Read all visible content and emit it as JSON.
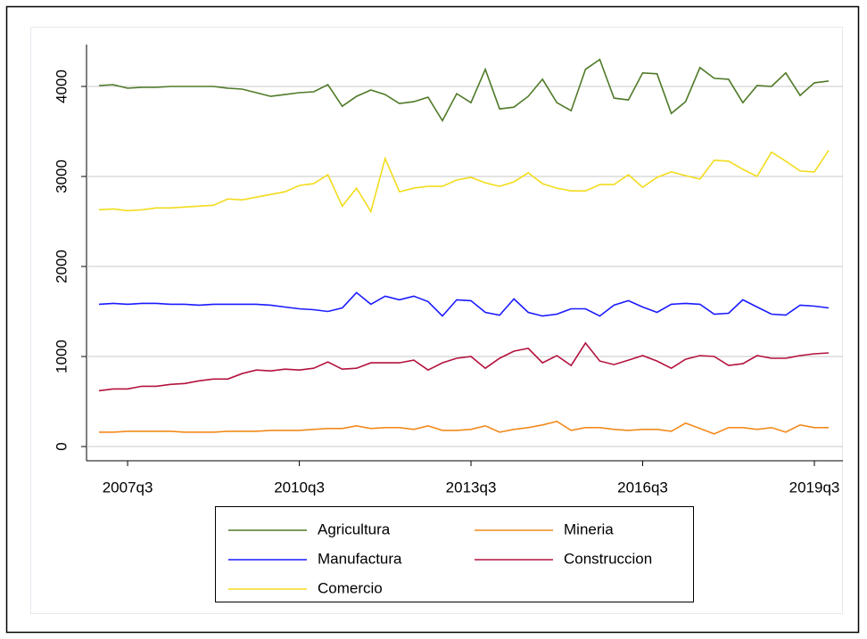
{
  "chart_data": {
    "type": "line",
    "categories": [
      null,
      null,
      "2007q3",
      null,
      null,
      null,
      null,
      null,
      null,
      null,
      null,
      null,
      null,
      null,
      "2010q3",
      null,
      null,
      null,
      null,
      null,
      null,
      null,
      null,
      null,
      null,
      null,
      "2013q3",
      null,
      null,
      null,
      null,
      null,
      null,
      null,
      null,
      null,
      null,
      null,
      "2016q3",
      null,
      null,
      null,
      null,
      null,
      null,
      null,
      null,
      null,
      null,
      null,
      "2019q3",
      null
    ],
    "ylim": [
      -158,
      4465
    ],
    "yticks": [
      0,
      1000,
      2000,
      3000,
      4000
    ],
    "grid": true,
    "series": [
      {
        "name": "Agricultura",
        "color": "#4f7a28",
        "values": [
          4010,
          4020,
          3980,
          3990,
          3990,
          4000,
          4000,
          4000,
          4000,
          3980,
          3970,
          3930,
          3890,
          3910,
          3930,
          3940,
          4020,
          3780,
          3890,
          3960,
          3910,
          3810,
          3830,
          3880,
          3620,
          3920,
          3820,
          4190,
          3750,
          3770,
          3890,
          4080,
          3820,
          3730,
          4190,
          4300,
          3870,
          3850,
          4150,
          4140,
          3700,
          3830,
          4210,
          4090,
          4080,
          3820,
          4010,
          4000,
          4150,
          3900,
          4040,
          4060
        ]
      },
      {
        "name": "Mineria",
        "color": "#f28a1c",
        "values": [
          160,
          160,
          170,
          170,
          170,
          170,
          160,
          160,
          160,
          170,
          170,
          170,
          180,
          180,
          180,
          190,
          200,
          200,
          230,
          200,
          210,
          210,
          190,
          230,
          180,
          180,
          190,
          230,
          160,
          190,
          210,
          240,
          280,
          180,
          210,
          210,
          190,
          180,
          190,
          190,
          170,
          260,
          200,
          140,
          210,
          210,
          190,
          210,
          160,
          240,
          210,
          210
        ]
      },
      {
        "name": "Manufactura",
        "color": "#1a1aff",
        "values": [
          1580,
          1590,
          1580,
          1590,
          1590,
          1580,
          1580,
          1570,
          1580,
          1580,
          1580,
          1580,
          1570,
          1550,
          1530,
          1520,
          1500,
          1540,
          1710,
          1580,
          1670,
          1630,
          1670,
          1610,
          1450,
          1630,
          1620,
          1490,
          1460,
          1640,
          1490,
          1450,
          1470,
          1530,
          1530,
          1450,
          1570,
          1620,
          1550,
          1490,
          1580,
          1590,
          1580,
          1470,
          1480,
          1630,
          1550,
          1470,
          1460,
          1570,
          1560,
          1540
        ]
      },
      {
        "name": "Construccion",
        "color": "#b3123e",
        "values": [
          620,
          640,
          640,
          670,
          670,
          690,
          700,
          730,
          750,
          750,
          810,
          850,
          840,
          860,
          850,
          870,
          940,
          860,
          870,
          930,
          930,
          930,
          960,
          850,
          930,
          980,
          1000,
          870,
          980,
          1060,
          1090,
          930,
          1010,
          900,
          1150,
          950,
          910,
          960,
          1010,
          950,
          870,
          970,
          1010,
          1000,
          900,
          920,
          1010,
          980,
          980,
          1010,
          1030,
          1040
        ]
      },
      {
        "name": "Comercio",
        "color": "#f2dc1c",
        "values": [
          2630,
          2640,
          2620,
          2630,
          2650,
          2650,
          2660,
          2670,
          2680,
          2750,
          2740,
          2770,
          2800,
          2830,
          2900,
          2920,
          3020,
          2670,
          2870,
          2610,
          3200,
          2830,
          2870,
          2890,
          2890,
          2960,
          2990,
          2930,
          2890,
          2940,
          3040,
          2920,
          2870,
          2840,
          2840,
          2910,
          2910,
          3020,
          2880,
          2990,
          3050,
          3010,
          2970,
          3180,
          3170,
          3080,
          3000,
          3270,
          3170,
          3060,
          3050,
          3290
        ]
      }
    ]
  }
}
